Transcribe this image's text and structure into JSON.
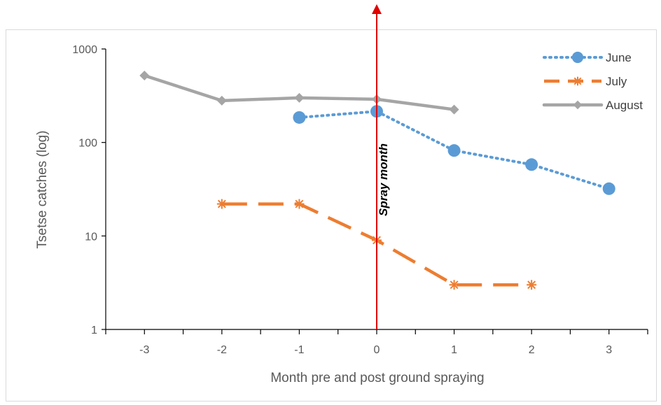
{
  "chart_data": {
    "type": "line",
    "title": "",
    "xlabel": "Month pre and post ground spraying",
    "ylabel": "Tsetse catches (log)",
    "y_scale": "log",
    "ylim": [
      1,
      1000
    ],
    "xlim": [
      -3.5,
      3.5
    ],
    "x_ticks": [
      -3,
      -2,
      -1,
      0,
      1,
      2,
      3
    ],
    "x_tick_labels": [
      "-3",
      "-2",
      "-1",
      "0",
      "1",
      "2",
      "3"
    ],
    "y_ticks": [
      1,
      10,
      100,
      1000
    ],
    "y_tick_labels": [
      "1",
      "10",
      "100",
      "1000"
    ],
    "grid": false,
    "legend_position": "top-right",
    "series": [
      {
        "name": "June",
        "color": "#5b9bd5",
        "line_style": "dotted",
        "marker": "circle",
        "x": [
          -1,
          0,
          1,
          2,
          3
        ],
        "values": [
          185,
          215,
          82,
          58,
          32
        ]
      },
      {
        "name": "July",
        "color": "#ed7d31",
        "line_style": "long-dash",
        "marker": "star",
        "x": [
          -2,
          -1,
          0,
          1,
          2
        ],
        "values": [
          22,
          22,
          9,
          3,
          3
        ]
      },
      {
        "name": "August",
        "color": "#a5a5a5",
        "line_style": "solid",
        "marker": "diamond",
        "x": [
          -3,
          -2,
          -1,
          0,
          1
        ],
        "values": [
          520,
          280,
          300,
          290,
          225
        ]
      }
    ],
    "annotations": [
      {
        "text": "Spray month",
        "x": 0,
        "style": "vertical red arrow",
        "color": "#e00000"
      }
    ]
  }
}
